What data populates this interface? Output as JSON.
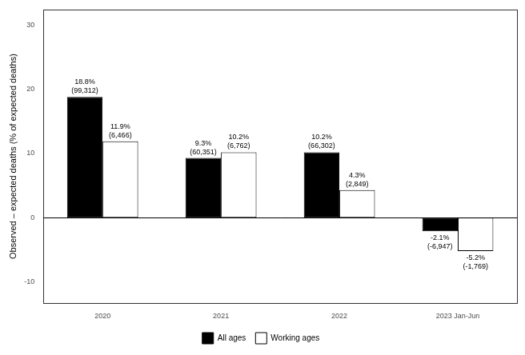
{
  "chart_data": {
    "type": "bar",
    "y_label": "Observed – expected deaths (% of expected deaths)",
    "categories": [
      "2020",
      "2021",
      "2022",
      "2023 Jan-Jun"
    ],
    "series": [
      {
        "name": "All ages",
        "color": "#000000",
        "values": [
          18.8,
          9.3,
          10.2,
          -2.1
        ],
        "value_labels": [
          "18.8%",
          "9.3%",
          "10.2%",
          "-2.1%"
        ],
        "excess_deaths": [
          {
            "value": 99312,
            "label": "(99,312)"
          },
          {
            "value": 60351,
            "label": "(60,351)"
          },
          {
            "value": 66302,
            "label": "(66,302)"
          },
          {
            "value": -6947,
            "label": "(-6,947)"
          }
        ]
      },
      {
        "name": "Working ages",
        "color": "#ffffff",
        "values": [
          11.9,
          10.2,
          4.3,
          -5.2
        ],
        "value_labels": [
          "11.9%",
          "10.2%",
          "4.3%",
          "-5.2%"
        ],
        "excess_deaths": [
          {
            "value": 6466,
            "label": "(6,466)"
          },
          {
            "value": 6762,
            "label": "(6,762)"
          },
          {
            "value": 2849,
            "label": "(2,849)"
          },
          {
            "value": -1769,
            "label": "(-1,769)"
          }
        ]
      }
    ],
    "ylim": [
      -13.3,
      32.4
    ],
    "yticks": [
      -10,
      0,
      10,
      20,
      30
    ],
    "grid": false,
    "legend": "bottom",
    "data_labels": true
  }
}
